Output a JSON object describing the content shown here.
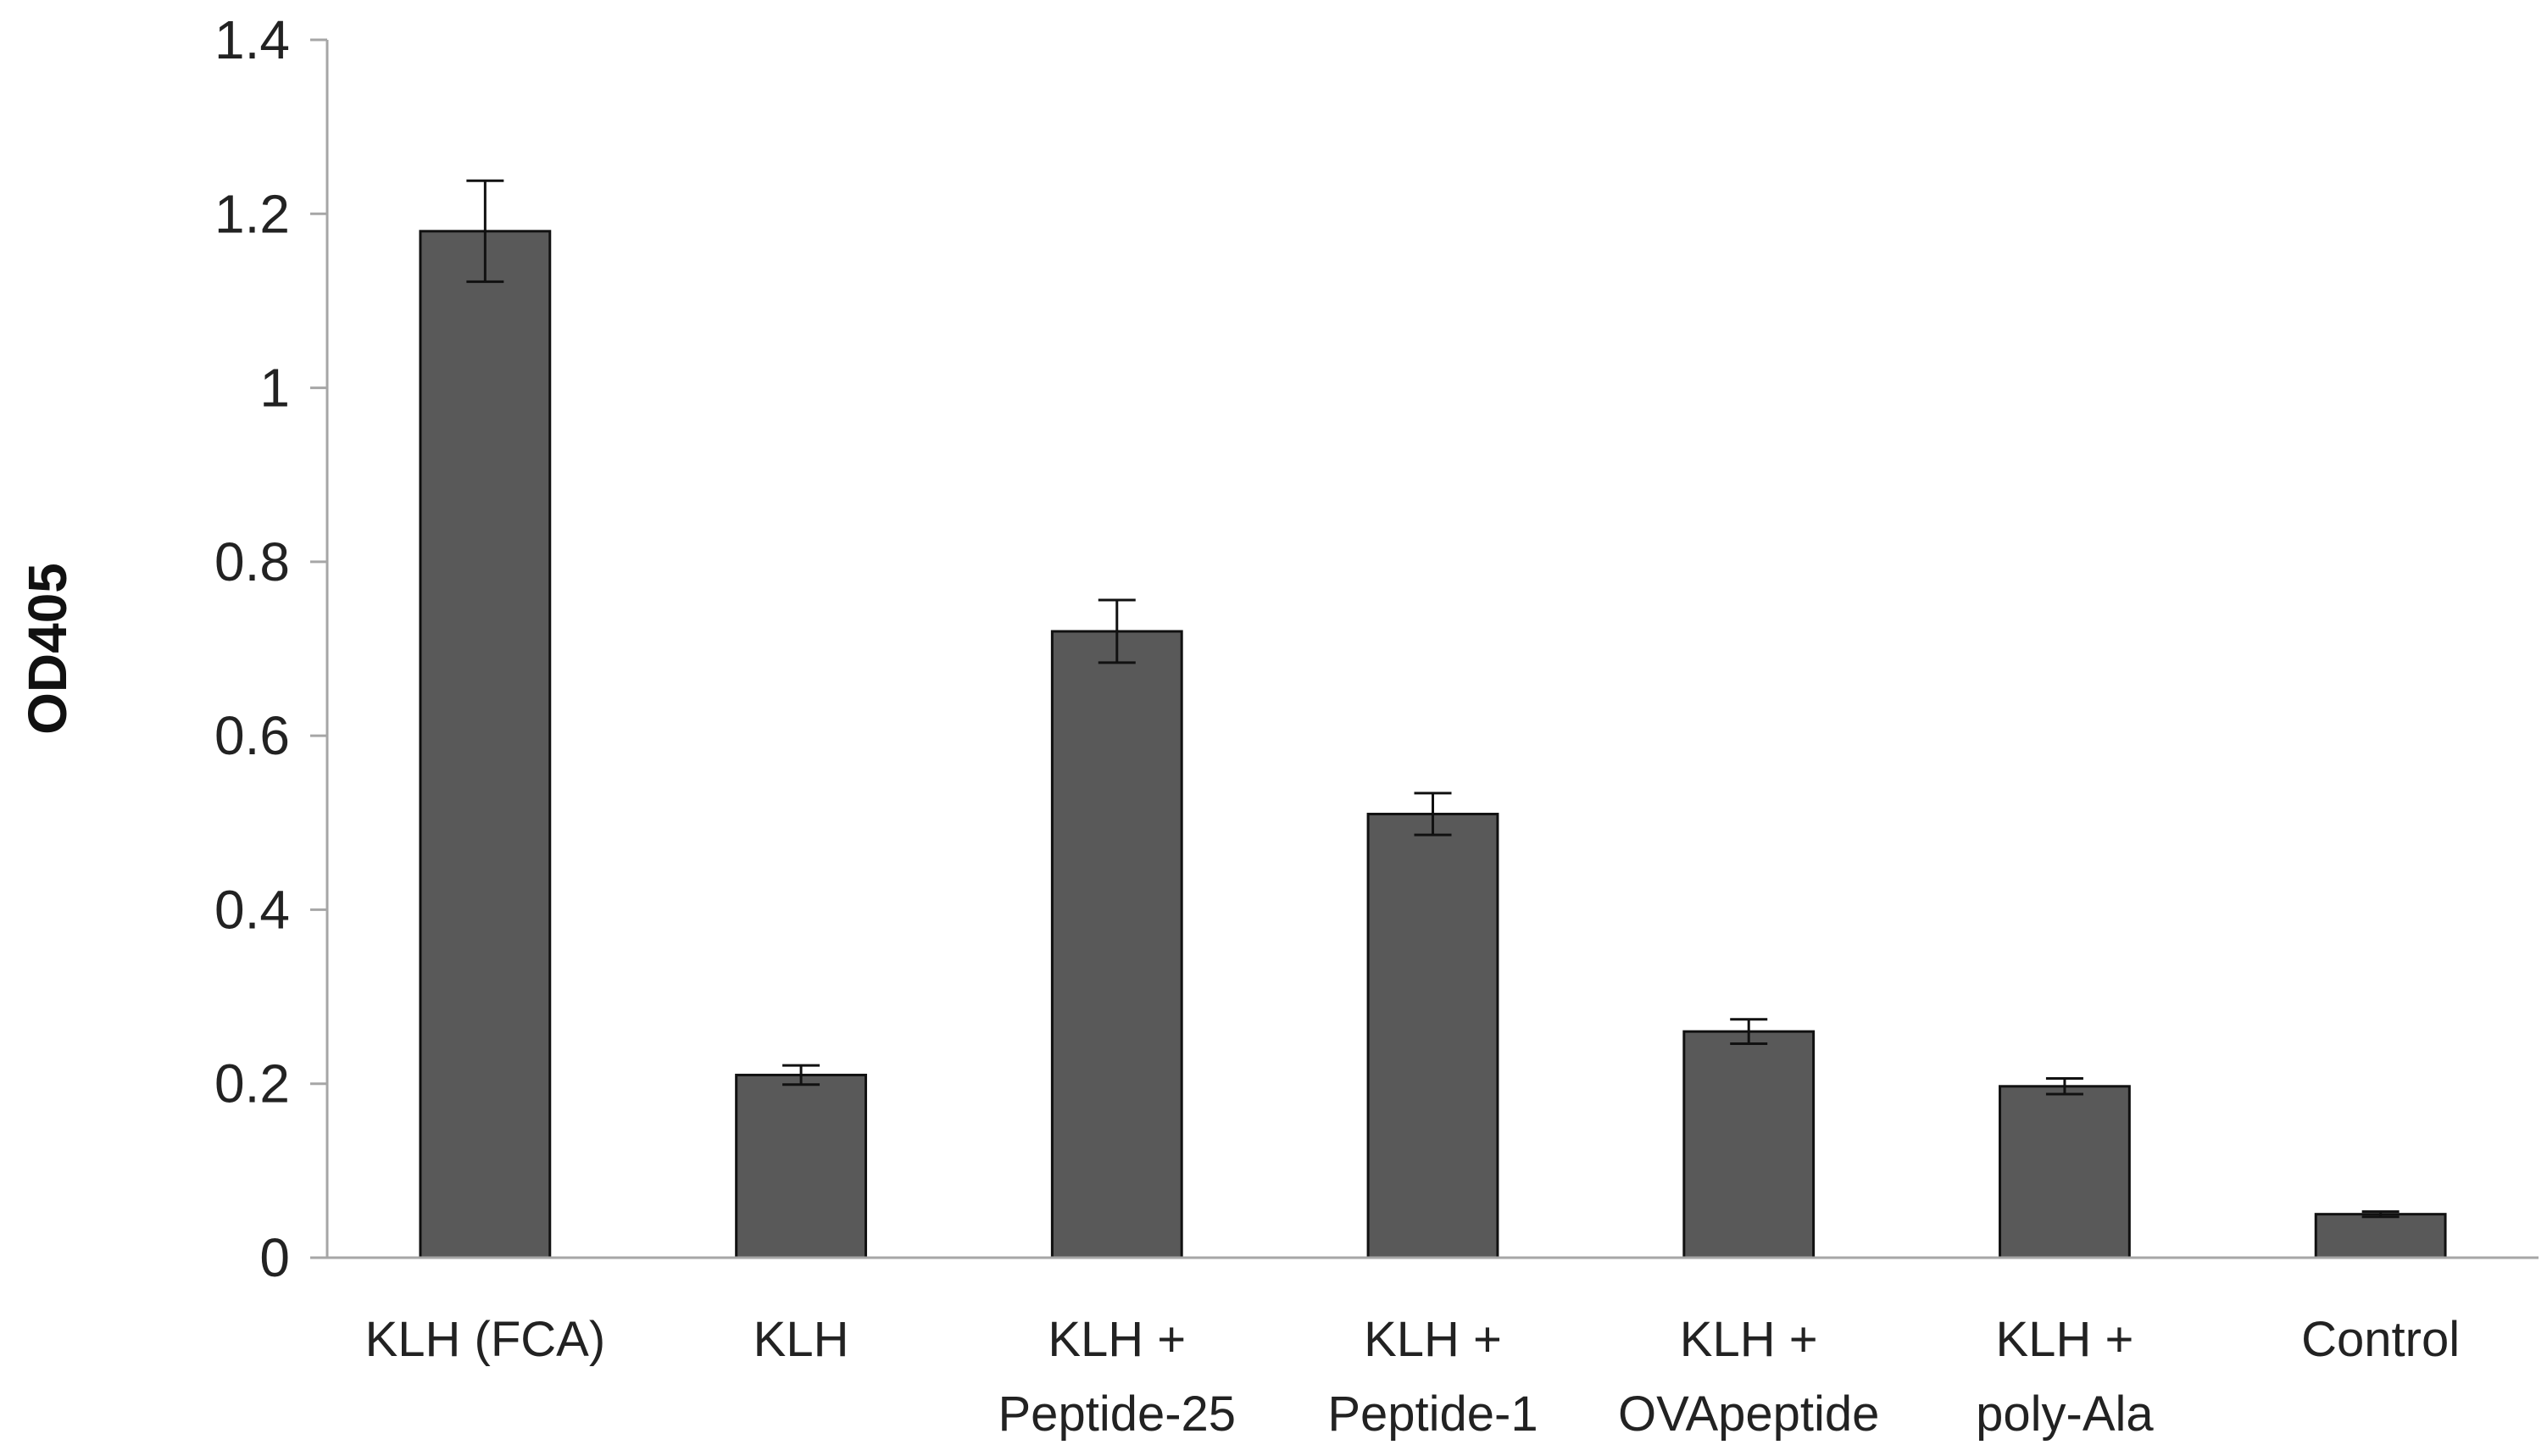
{
  "chart_data": {
    "type": "bar",
    "title": "",
    "xlabel": "",
    "ylabel": "OD405",
    "ylim": [
      0,
      1.4
    ],
    "yticks": [
      0,
      0.2,
      0.4,
      0.6,
      0.8,
      1,
      1.2,
      1.4
    ],
    "ytick_labels": [
      "0",
      "0.2",
      "0.4",
      "0.6",
      "0.8",
      "1",
      "1.2",
      "1.4"
    ],
    "grid": false,
    "bar_color": "#595959",
    "categories": [
      [
        "KLH (FCA)"
      ],
      [
        "KLH"
      ],
      [
        "KLH +",
        "Peptide-25"
      ],
      [
        "KLH +",
        "Peptide-1"
      ],
      [
        "KLH +",
        "OVApeptide"
      ],
      [
        "KLH +",
        "poly-Ala"
      ],
      [
        "Control"
      ]
    ],
    "values": [
      1.18,
      0.21,
      0.72,
      0.51,
      0.26,
      0.197,
      0.05
    ],
    "errors": [
      0.058,
      0.011,
      0.036,
      0.024,
      0.014,
      0.009,
      0.003
    ]
  }
}
